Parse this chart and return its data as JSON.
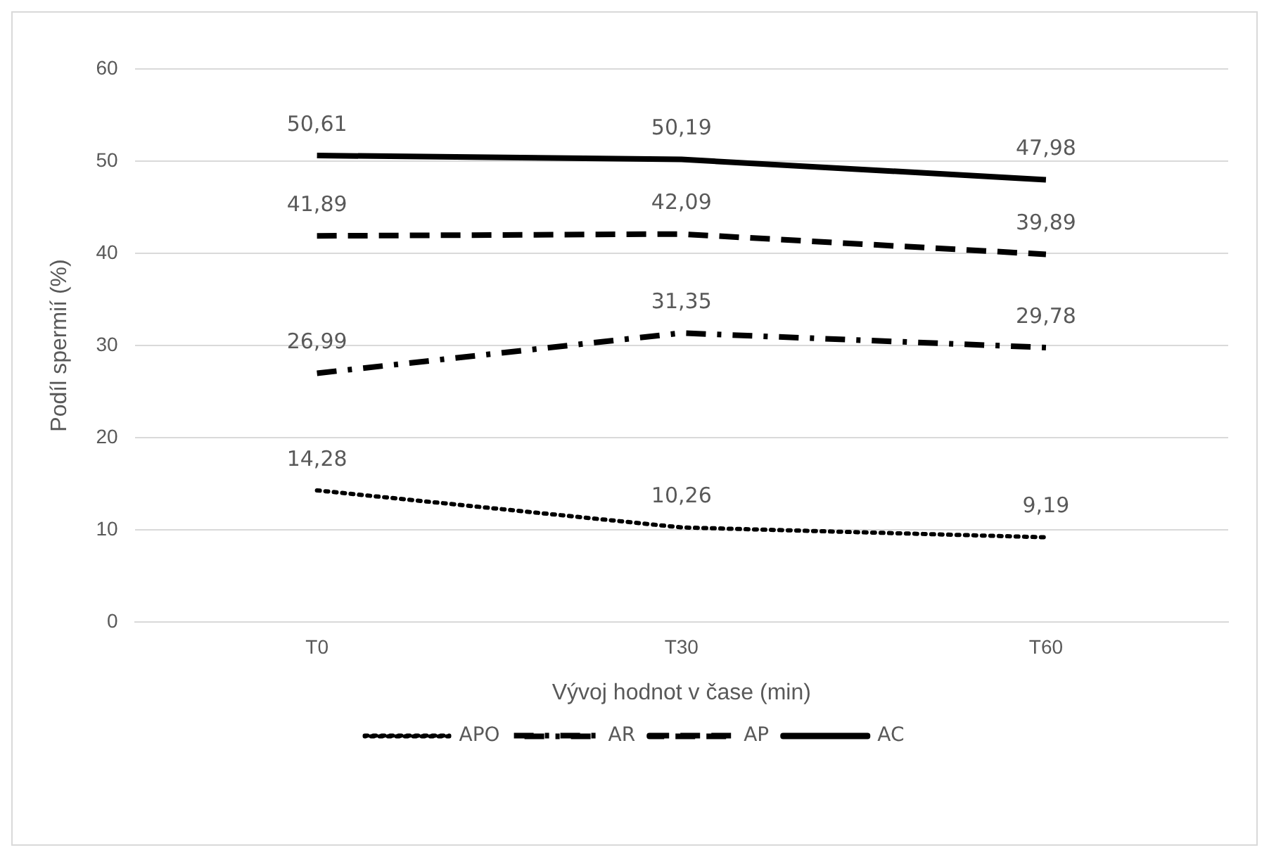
{
  "chart_data": {
    "type": "line",
    "xlabel": "Vývoj hodnot v čase (min)",
    "ylabel": "Podíl spermií (%)",
    "categories": [
      "T0",
      "T30",
      "T60"
    ],
    "series": [
      {
        "name": "APO",
        "color": "#000000",
        "line_style": "dotted",
        "values": [
          14.28,
          10.26,
          9.19
        ],
        "value_labels": [
          "14,28",
          "10,26",
          "9,19"
        ]
      },
      {
        "name": "AR",
        "color": "#000000",
        "line_style": "dashdot",
        "values": [
          26.99,
          31.35,
          29.78
        ],
        "value_labels": [
          "26,99",
          "31,35",
          "29,78"
        ]
      },
      {
        "name": "AP",
        "color": "#000000",
        "line_style": "dashed",
        "values": [
          41.89,
          42.09,
          39.89
        ],
        "value_labels": [
          "41,89",
          "42,09",
          "39,89"
        ]
      },
      {
        "name": "AC",
        "color": "#000000",
        "line_style": "solid",
        "values": [
          50.61,
          50.19,
          47.98
        ],
        "value_labels": [
          "50,61",
          "50,19",
          "47,98"
        ]
      }
    ],
    "ylim": [
      0,
      60
    ],
    "yticks": [
      0,
      10,
      20,
      30,
      40,
      50,
      60
    ],
    "grid": "y",
    "legend": "bottom",
    "marker": "none"
  }
}
